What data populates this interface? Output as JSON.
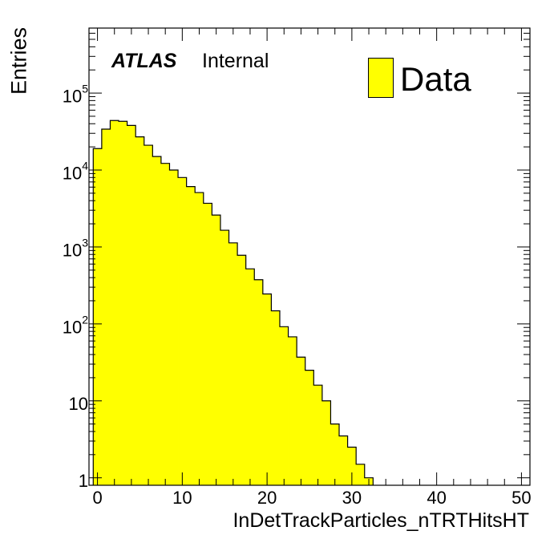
{
  "chart_data": {
    "type": "bar",
    "style": "step-histogram",
    "xlabel": "InDetTrackParticles_nTRTHitsHT",
    "ylabel": "Entries",
    "xlim": [
      -1,
      51
    ],
    "ylim": [
      0.8,
      700000
    ],
    "yscale": "log",
    "grid": false,
    "legend": {
      "placement": "top-right",
      "entries": [
        "Data"
      ]
    },
    "fill_color": "#ffff00",
    "line_color": "#000000",
    "annotation_bold": "ATLAS",
    "annotation": "Internal",
    "x_ticks": [
      "0",
      "10",
      "20",
      "30",
      "40",
      "50"
    ],
    "y_ticks": [
      {
        "base": "1",
        "exp": ""
      },
      {
        "base": "10",
        "exp": ""
      },
      {
        "base": "10",
        "exp": "2"
      },
      {
        "base": "10",
        "exp": "3"
      },
      {
        "base": "10",
        "exp": "4"
      },
      {
        "base": "10",
        "exp": "5"
      }
    ],
    "bin_edges_start": -0.5,
    "bin_width": 1,
    "values": [
      19000,
      34000,
      44000,
      43000,
      38000,
      27000,
      21000,
      15000,
      12200,
      10000,
      8000,
      6100,
      5100,
      3700,
      2600,
      1650,
      1130,
      780,
      520,
      375,
      245,
      148,
      92,
      68,
      37,
      25,
      16,
      10,
      5,
      3.5,
      2.5,
      1.5,
      1.0
    ]
  }
}
